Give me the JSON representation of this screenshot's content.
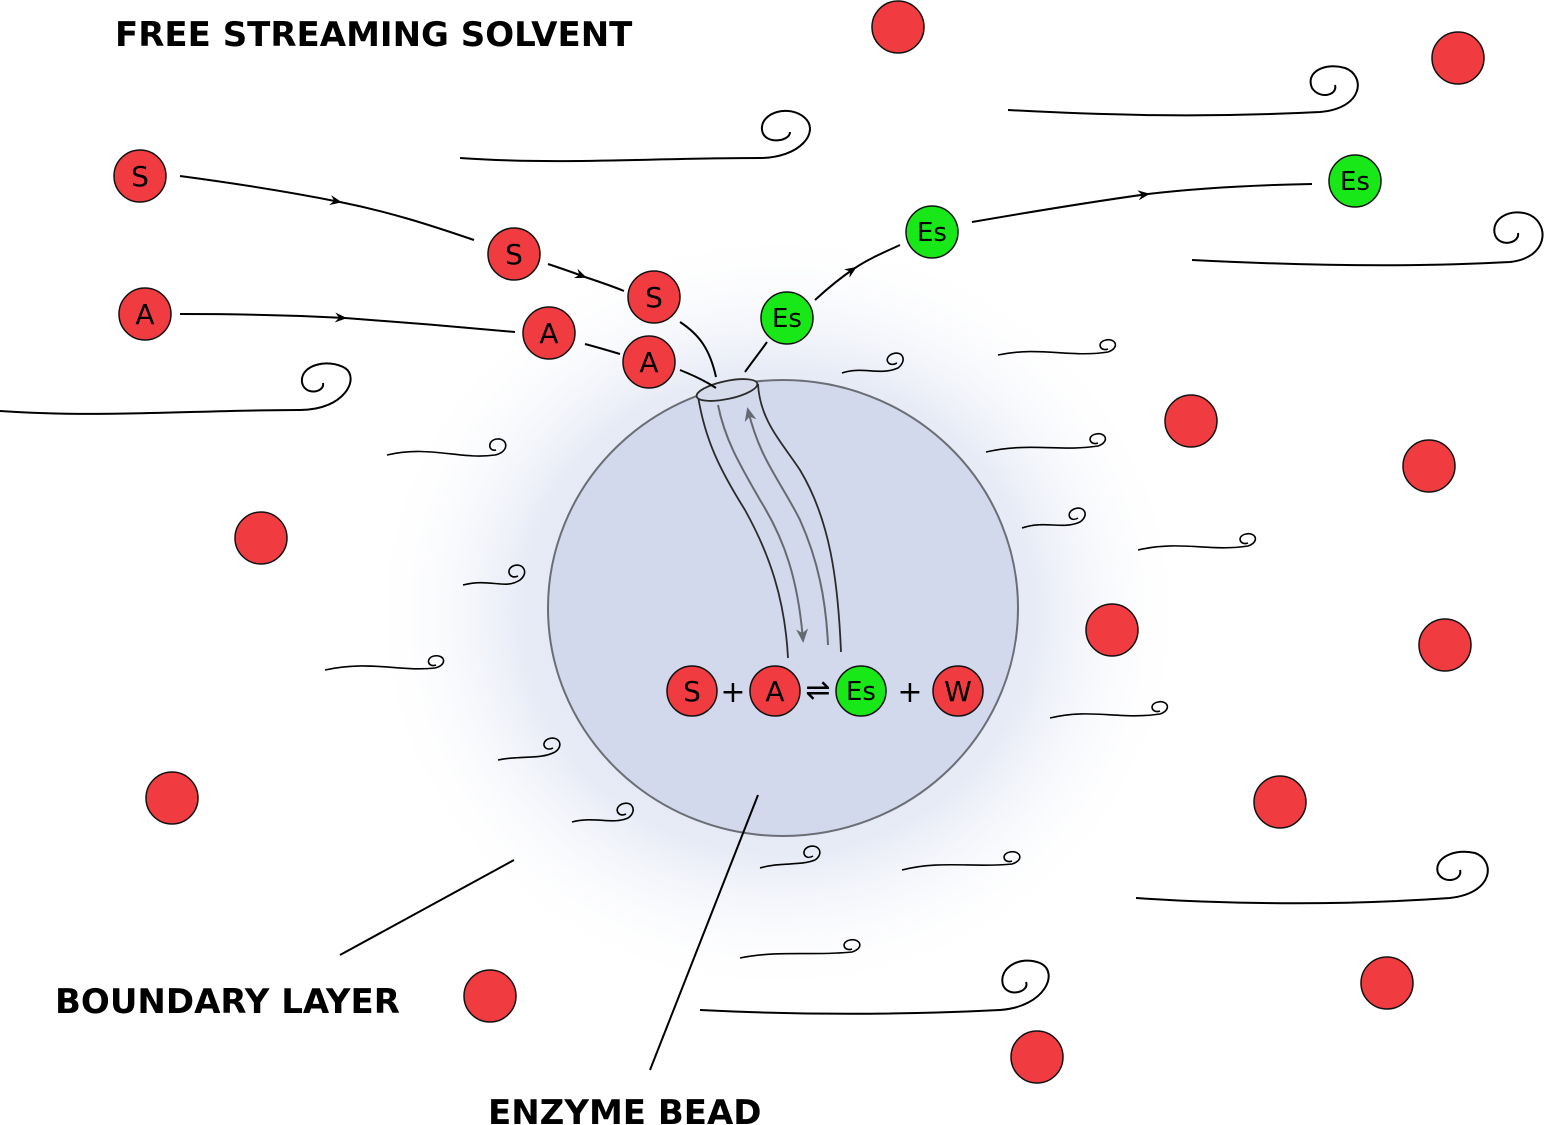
{
  "labels": {
    "free_solvent": "FREE STREAMING SOLVENT",
    "boundary_layer": "BOUNDARY LAYER",
    "enzyme_bead": "ENZYME BEAD"
  },
  "molecules": {
    "substrate": "S",
    "acyl_donor": "A",
    "ester": "Es",
    "water": "W"
  },
  "reaction": {
    "plus_1": "+",
    "equilibrium": "⇌",
    "plus_2": "+"
  },
  "colors": {
    "reactant": "#f03c41",
    "product": "#18e818",
    "bead": "#d2d9ec",
    "boundary": "#e4e8f4",
    "pore_arrow": "#666a70"
  }
}
